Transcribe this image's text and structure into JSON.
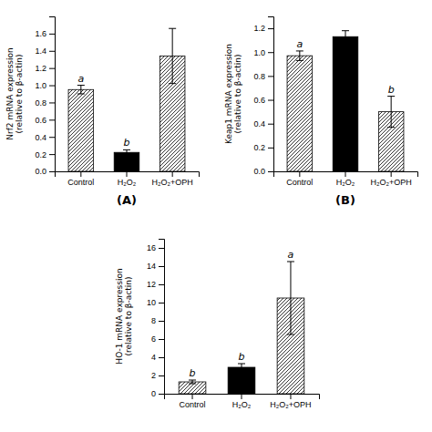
{
  "chart_data": [
    {
      "type": "bar",
      "title": "(A)",
      "y_label": "Nrf2 mRNA expression\n(relative to β-actin)",
      "categories": [
        "Control",
        "H₂O₂",
        "H₂O₂+OPH"
      ],
      "values": [
        0.95,
        0.22,
        1.34
      ],
      "errors": [
        0.05,
        0.03,
        0.32
      ],
      "colors": [
        "hatched",
        "black",
        "hatched"
      ],
      "letters": [
        "a",
        "b",
        null
      ],
      "ylim": [
        0,
        1.8
      ],
      "yticks": [
        {
          "value": 0,
          "label": "0.0"
        },
        0.2,
        0.4,
        0.6,
        0.8,
        {
          "value": 1,
          "label": "1.0"
        },
        1.2,
        1.4,
        1.6
      ]
    },
    {
      "type": "bar",
      "title": "(B)",
      "y_label": "Keap1 mRNA expression\n(relative to β-actin)",
      "categories": [
        "Control",
        "H₂O₂",
        "H₂O₂+OPH"
      ],
      "values": [
        0.97,
        1.13,
        0.5
      ],
      "errors": [
        0.04,
        0.05,
        0.13
      ],
      "colors": [
        "hatched",
        "black",
        "hatched"
      ],
      "letters": [
        "a",
        null,
        "b"
      ],
      "ylim": [
        0,
        1.3
      ],
      "yticks": [
        {
          "value": 0,
          "label": "0.0"
        },
        0.2,
        0.4,
        0.6,
        0.8,
        {
          "value": 1,
          "label": "1.0"
        },
        1.2
      ]
    },
    {
      "type": "bar",
      "y_label": "HO-1 mRNA expression\n(relative to β-actin)",
      "categories": [
        "Control",
        "H₂O₂",
        "H₂O₂+OPH"
      ],
      "values": [
        1.3,
        2.9,
        10.5
      ],
      "errors": [
        0.2,
        0.4,
        4.0
      ],
      "colors": [
        "hatched",
        "black",
        "hatched"
      ],
      "letters": [
        "b",
        "b",
        "a"
      ],
      "ylim": [
        0,
        17
      ],
      "yticks": [
        0,
        2,
        4,
        6,
        8,
        10,
        12,
        14,
        16
      ]
    }
  ]
}
